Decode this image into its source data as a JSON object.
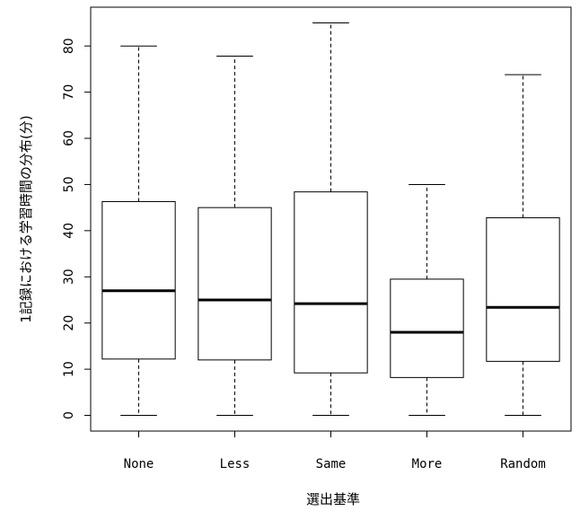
{
  "chart_data": {
    "type": "boxplot",
    "title": "",
    "xlabel": "選出基準",
    "ylabel": "1記録における学習時間の分布(分)",
    "categories": [
      "None",
      "Less",
      "Same",
      "More",
      "Random"
    ],
    "boxes": [
      {
        "category": "None",
        "whisker_low": 0,
        "q1": 12.2,
        "median": 27.0,
        "q3": 46.3,
        "whisker_high": 80.0
      },
      {
        "category": "Less",
        "whisker_low": 0,
        "q1": 12.0,
        "median": 25.0,
        "q3": 45.0,
        "whisker_high": 77.8
      },
      {
        "category": "Same",
        "whisker_low": 0,
        "q1": 9.2,
        "median": 24.2,
        "q3": 48.4,
        "whisker_high": 85.0
      },
      {
        "category": "More",
        "whisker_low": 0,
        "q1": 8.2,
        "median": 18.0,
        "q3": 29.5,
        "whisker_high": 50.0
      },
      {
        "category": "Random",
        "whisker_low": 0,
        "q1": 11.7,
        "median": 23.4,
        "q3": 42.8,
        "whisker_high": 73.8
      }
    ],
    "ylim": [
      -3.4,
      88.4
    ],
    "yticks": [
      0,
      10,
      20,
      30,
      40,
      50,
      60,
      70,
      80
    ],
    "grid": false,
    "legend": "none"
  }
}
